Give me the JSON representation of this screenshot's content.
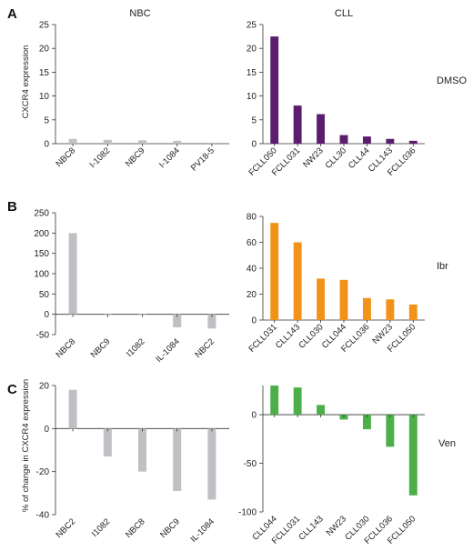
{
  "figure": {
    "panel_letters": [
      "A",
      "B",
      "C"
    ],
    "column_titles": [
      "NBC",
      "CLL"
    ],
    "row_labels": [
      "DMSO",
      "Ibr",
      "Ven"
    ],
    "ylabels": [
      "CXCR4 expression",
      "% of change in CXCR4 expression"
    ]
  },
  "colors": {
    "gray": "#c0c0c4",
    "purple": "#5b1e6e",
    "orange": "#f39219",
    "green": "#4caf4a"
  },
  "chart_data": [
    {
      "id": "A-NBC",
      "type": "bar",
      "panel": "A",
      "column": "NBC",
      "color_key": "gray",
      "ylabel": "CXCR4 expression",
      "ylim": [
        0,
        25
      ],
      "yticks": [
        0,
        5,
        10,
        15,
        20,
        25
      ],
      "categories": [
        "NBC8",
        "I-1082",
        "NBC9",
        "I-1084",
        "PV18-5"
      ],
      "values": [
        1.0,
        0.8,
        0.7,
        0.6,
        0.2
      ]
    },
    {
      "id": "A-CLL",
      "type": "bar",
      "panel": "A",
      "column": "CLL",
      "color_key": "purple",
      "ylim": [
        0,
        25
      ],
      "yticks": [
        0,
        5,
        10,
        15,
        20,
        25
      ],
      "categories": [
        "FCLL050",
        "FCLL031",
        "NW23",
        "CLL30",
        "CLL44",
        "CLL143",
        "FCLL036"
      ],
      "values": [
        22.5,
        8.0,
        6.2,
        1.8,
        1.5,
        1.0,
        0.6
      ]
    },
    {
      "id": "B-NBC",
      "type": "bar",
      "panel": "B",
      "column": "NBC",
      "color_key": "gray",
      "ylim": [
        -50,
        250
      ],
      "yticks": [
        -50,
        0,
        50,
        100,
        150,
        200,
        250
      ],
      "categories": [
        "NBC8",
        "NBC9",
        "I1082",
        "IL-1084",
        "NBC2"
      ],
      "values": [
        200,
        0,
        0,
        -32,
        -35
      ]
    },
    {
      "id": "B-CLL",
      "type": "bar",
      "panel": "B",
      "column": "CLL",
      "color_key": "orange",
      "ylim": [
        0,
        80
      ],
      "yticks": [
        0,
        20,
        40,
        60,
        80
      ],
      "categories": [
        "FCLL031",
        "CLL143",
        "CLL030",
        "CLL044",
        "FCLL036",
        "NW23",
        "FCLL050"
      ],
      "values": [
        75,
        60,
        32,
        31,
        17,
        16,
        12
      ]
    },
    {
      "id": "C-NBC",
      "type": "bar",
      "panel": "C",
      "column": "NBC",
      "color_key": "gray",
      "ylim": [
        -40,
        20
      ],
      "yticks": [
        -40,
        -20,
        0,
        20
      ],
      "categories": [
        "NBC2",
        "I1082",
        "NBC8",
        "NBC9",
        "IL-1084"
      ],
      "values": [
        18,
        -13,
        -20,
        -29,
        -33
      ]
    },
    {
      "id": "C-CLL",
      "type": "bar",
      "panel": "C",
      "column": "CLL",
      "color_key": "green",
      "ylim": [
        -100,
        30
      ],
      "yticks": [
        -100,
        -50,
        0
      ],
      "categories": [
        "CLL044",
        "FCLL031",
        "CLL143",
        "NW23",
        "CLL030",
        "FCLL036",
        "FCLL050"
      ],
      "values": [
        30,
        28,
        10,
        -5,
        -15,
        -33,
        -83
      ]
    }
  ]
}
